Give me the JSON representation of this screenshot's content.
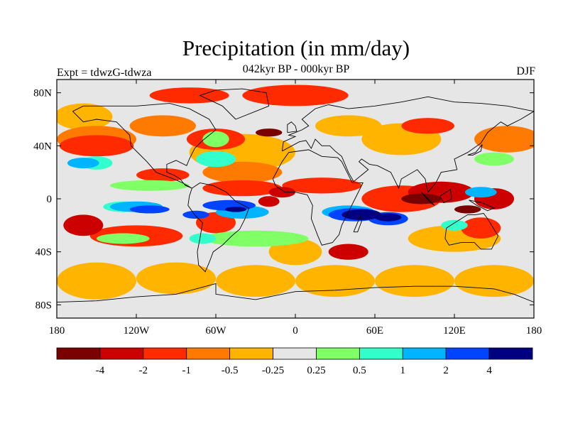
{
  "title": "Precipitation (in mm/day)",
  "subtitle": "042kyr BP - 000kyr BP",
  "left_label": "Expt = tdwzG-tdwza",
  "right_label": "DJF",
  "map": {
    "projection": "cylindrical-equidistant",
    "lon_range": [
      -180,
      180
    ],
    "lat_range": [
      -90,
      90
    ],
    "background_color": "#e6e6e6",
    "lon_ticks": [
      {
        "value": -180,
        "label": "180"
      },
      {
        "value": -120,
        "label": "120W"
      },
      {
        "value": -60,
        "label": "60W"
      },
      {
        "value": 0,
        "label": "0"
      },
      {
        "value": 60,
        "label": "60E"
      },
      {
        "value": 120,
        "label": "120E"
      },
      {
        "value": 180,
        "label": "180"
      }
    ],
    "lat_ticks": [
      {
        "value": 80,
        "label": "80N"
      },
      {
        "value": 40,
        "label": "40N"
      },
      {
        "value": 0,
        "label": "0"
      },
      {
        "value": -40,
        "label": "40S"
      },
      {
        "value": -80,
        "label": "80S"
      }
    ]
  },
  "colorbar": {
    "colors": [
      "#7a0000",
      "#cc0000",
      "#ff2a00",
      "#ff7a00",
      "#ffb400",
      "#e6e6e6",
      "#80ff66",
      "#33ffcc",
      "#00b4ff",
      "#0044ff",
      "#000080"
    ],
    "levels": [
      "-4",
      "-2",
      "-1",
      "-0.5",
      "-0.25",
      "0.25",
      "0.5",
      "1",
      "2",
      "4"
    ]
  }
}
